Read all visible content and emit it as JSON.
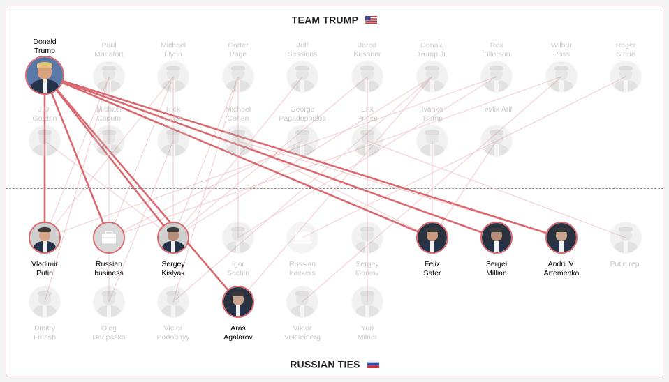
{
  "header": {
    "title": "TEAM TRUMP"
  },
  "footer": {
    "title": "RUSSIAN TIES"
  },
  "colors": {
    "accent": "#d9696f",
    "faint_link": "#f1c9cc",
    "dim_text": "#c8c8c8"
  },
  "team_trump": [
    {
      "id": "trump",
      "name": "Donald\nTrump",
      "active": true
    },
    {
      "id": "manafort",
      "name": "Paul\nManafort",
      "active": false
    },
    {
      "id": "flynn",
      "name": "Michael\nFlynn",
      "active": false
    },
    {
      "id": "page",
      "name": "Carter\nPage",
      "active": false
    },
    {
      "id": "sessions",
      "name": "Jeff\nSessions",
      "active": false
    },
    {
      "id": "kushner",
      "name": "Jared\nKushner",
      "active": false
    },
    {
      "id": "trumpjr",
      "name": "Donald\nTrump Jr.",
      "active": false
    },
    {
      "id": "tillerson",
      "name": "Rex\nTillerson",
      "active": false
    },
    {
      "id": "ross",
      "name": "Wilbur\nRoss",
      "active": false
    },
    {
      "id": "stone",
      "name": "Roger\nStone",
      "active": false
    },
    {
      "id": "gordon",
      "name": "J.D.\nGordon",
      "active": false
    },
    {
      "id": "caputo",
      "name": "Michael\nCaputo",
      "active": false
    },
    {
      "id": "gates",
      "name": "Rick\nGates",
      "active": false
    },
    {
      "id": "cohen",
      "name": "Michael\nCohen",
      "active": false
    },
    {
      "id": "papadopoulos",
      "name": "George\nPapadopoulos",
      "active": false
    },
    {
      "id": "prince",
      "name": "Erik\nPrince",
      "active": false
    },
    {
      "id": "ivanka",
      "name": "Ivanka\nTrump",
      "active": false
    },
    {
      "id": "arif",
      "name": "Tevfik Arif",
      "active": false
    }
  ],
  "russian_ties": [
    {
      "id": "putin",
      "name": "Vladimir\nPutin",
      "active": true
    },
    {
      "id": "business",
      "name": "Russian\nbusiness",
      "active": true
    },
    {
      "id": "kislyak",
      "name": "Sergey\nKislyak",
      "active": true
    },
    {
      "id": "sechin",
      "name": "Igor\nSechin",
      "active": false
    },
    {
      "id": "hackers",
      "name": "Russian\nhackers",
      "active": false
    },
    {
      "id": "gorkov",
      "name": "Sergey\nGorkov",
      "active": false
    },
    {
      "id": "sater",
      "name": "Felix\nSater",
      "active": true
    },
    {
      "id": "millian",
      "name": "Sergei\nMillian",
      "active": true
    },
    {
      "id": "artemenko",
      "name": "Andrii V.\nArtemenko",
      "active": true
    },
    {
      "id": "putinrep",
      "name": "Putin rep.",
      "active": false
    },
    {
      "id": "firtash",
      "name": "Dmitry\nFirtash",
      "active": false
    },
    {
      "id": "deripaska",
      "name": "Oleg\nDeripaska",
      "active": false
    },
    {
      "id": "podobnyy",
      "name": "Victor\nPodobnyy",
      "active": false
    },
    {
      "id": "agalarov",
      "name": "Aras\nAgalarov",
      "active": true
    },
    {
      "id": "vekselberg",
      "name": "Viktor\nVekselberg",
      "active": false
    },
    {
      "id": "milner",
      "name": "Yuri\nMilner",
      "active": false
    }
  ],
  "highlighted_links": [
    [
      "trump",
      "putin"
    ],
    [
      "trump",
      "business"
    ],
    [
      "trump",
      "kislyak"
    ],
    [
      "trump",
      "agalarov"
    ],
    [
      "trump",
      "sater"
    ],
    [
      "trump",
      "millian"
    ],
    [
      "trump",
      "artemenko"
    ]
  ]
}
